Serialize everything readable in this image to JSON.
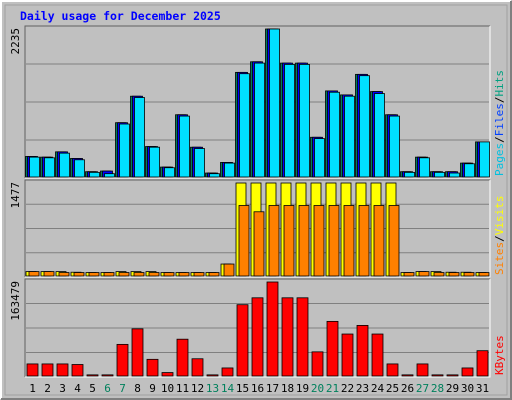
{
  "chart_data": {
    "type": "bar",
    "title": "Daily usage for December 2025",
    "x": [
      "1",
      "2",
      "3",
      "4",
      "5",
      "6",
      "7",
      "8",
      "9",
      "10",
      "11",
      "12",
      "13",
      "14",
      "15",
      "16",
      "17",
      "18",
      "19",
      "20",
      "21",
      "22",
      "23",
      "24",
      "25",
      "26",
      "27",
      "28",
      "29",
      "30",
      "31"
    ],
    "weekend_days": [
      "6",
      "7",
      "13",
      "14",
      "20",
      "21",
      "27",
      "28"
    ],
    "grid": true,
    "panels": [
      {
        "id": "hits",
        "max_label": "2235",
        "ymax": 2235,
        "legend": [
          {
            "text": "Pages",
            "color": "#00c0e0"
          },
          {
            "text": "Files",
            "color": "#0040ff"
          },
          {
            "text": "Hits",
            "color": "#00a080"
          }
        ],
        "separator": "/",
        "series": [
          {
            "name": "Hits",
            "color": "#00805c",
            "values": [
              310,
              300,
              380,
              280,
              80,
              90,
              820,
              1220,
              460,
              150,
              940,
              450,
              60,
              220,
              1580,
              1740,
              2235,
              1720,
              1720,
              600,
              1300,
              1240,
              1550,
              1290,
              940,
              80,
              300,
              80,
              80,
              210,
              530
            ]
          },
          {
            "name": "Files",
            "color": "#0000ff",
            "values": [
              310,
              300,
              380,
              280,
              80,
              90,
              820,
              1220,
              460,
              150,
              940,
              450,
              60,
              220,
              1580,
              1740,
              2235,
              1720,
              1720,
              600,
              1300,
              1240,
              1550,
              1290,
              940,
              80,
              300,
              80,
              80,
              210,
              530
            ]
          },
          {
            "name": "Pages",
            "color": "#00e0ff",
            "values": [
              300,
              290,
              360,
              260,
              70,
              50,
              800,
              1200,
              450,
              140,
              920,
              430,
              50,
              210,
              1560,
              1720,
              2235,
              1700,
              1700,
              580,
              1280,
              1220,
              1530,
              1260,
              920,
              70,
              290,
              70,
              60,
              200,
              530
            ]
          }
        ]
      },
      {
        "id": "visits",
        "max_label": "1477",
        "ymax": 1477,
        "legend": [
          {
            "text": "Sites",
            "color": "#ff8000"
          },
          {
            "text": "Visits",
            "color": "#ffff00"
          }
        ],
        "separator": "/",
        "series": [
          {
            "name": "Visits",
            "color": "#ffff00",
            "values": [
              70,
              70,
              70,
              60,
              55,
              55,
              70,
              70,
              70,
              55,
              55,
              55,
              55,
              190,
              1477,
              1477,
              1477,
              1477,
              1477,
              1477,
              1477,
              1477,
              1477,
              1477,
              1477,
              55,
              70,
              70,
              60,
              60,
              55
            ]
          },
          {
            "name": "Sites",
            "color": "#ff8000",
            "values": [
              70,
              70,
              55,
              55,
              55,
              55,
              55,
              55,
              55,
              55,
              55,
              55,
              55,
              190,
              1120,
              1020,
              1120,
              1120,
              1120,
              1120,
              1120,
              1120,
              1120,
              1120,
              1120,
              55,
              70,
              55,
              55,
              55,
              55
            ]
          }
        ]
      },
      {
        "id": "kbytes",
        "max_label": "163479",
        "ymax": 163479,
        "legend": [
          {
            "text": "KBytes",
            "color": "#ff0000"
          }
        ],
        "separator": "",
        "series": [
          {
            "name": "KBytes",
            "color": "#ff0000",
            "values": [
              21000,
              21000,
              21000,
              20000,
              2000,
              2000,
              55000,
              82000,
              29000,
              6000,
              64000,
              30000,
              2000,
              14000,
              124000,
              136000,
              163479,
              136000,
              136000,
              42000,
              95000,
              73000,
              88000,
              73000,
              21000,
              2000,
              21000,
              2000,
              2000,
              14000,
              44000
            ]
          }
        ]
      }
    ]
  }
}
